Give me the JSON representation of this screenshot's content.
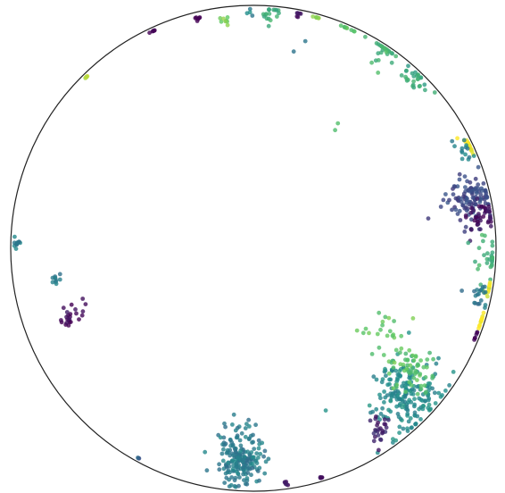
{
  "chart_data": {
    "type": "scatter",
    "title": "",
    "xlabel": "",
    "ylabel": "",
    "frame": "circle",
    "xlim": [
      -1,
      1
    ],
    "ylim": [
      -1,
      1
    ],
    "grid": false,
    "legend": "none",
    "colormap": "viridis",
    "colormap_stops": [
      "#440154",
      "#3b528b",
      "#21908c",
      "#5dc863",
      "#fde725"
    ],
    "clusters": [
      {
        "name": "top-left-purple",
        "x": -0.43,
        "y": 0.93,
        "c": 0.0,
        "n": 6,
        "spread": 0.008
      },
      {
        "name": "top-left-purple-2",
        "x": -0.23,
        "y": 0.95,
        "c": 0.0,
        "n": 6,
        "spread": 0.008
      },
      {
        "name": "top-yellowgreen",
        "x": -0.12,
        "y": 0.94,
        "c": 0.78,
        "n": 8,
        "spread": 0.012
      },
      {
        "name": "top-teal",
        "x": -0.01,
        "y": 0.97,
        "c": 0.45,
        "n": 4,
        "spread": 0.01
      },
      {
        "name": "top-green",
        "x": 0.07,
        "y": 0.975,
        "c": 0.62,
        "n": 18,
        "spread": 0.025
      },
      {
        "name": "top-purple",
        "x": 0.18,
        "y": 0.975,
        "c": 0.05,
        "n": 6,
        "spread": 0.01
      },
      {
        "name": "top-yellow",
        "x": 0.27,
        "y": 0.97,
        "c": 0.85,
        "n": 8,
        "spread": 0.012
      },
      {
        "name": "top-green-2",
        "x": 0.39,
        "y": 0.92,
        "c": 0.72,
        "n": 10,
        "spread": 0.015
      },
      {
        "name": "upper-right-arc",
        "x": 0.55,
        "y": 0.82,
        "c": 0.66,
        "n": 30,
        "spread": 0.04
      },
      {
        "name": "upper-right-arc-2",
        "x": 0.67,
        "y": 0.7,
        "c": 0.6,
        "n": 26,
        "spread": 0.035
      },
      {
        "name": "left-yellow",
        "x": -0.73,
        "y": 0.75,
        "c": 0.9,
        "n": 6,
        "spread": 0.008
      },
      {
        "name": "right-yellow",
        "x": 0.91,
        "y": 0.43,
        "c": 1.0,
        "n": 22,
        "spread": 0.02
      },
      {
        "name": "right-teal",
        "x": 0.87,
        "y": 0.4,
        "c": 0.45,
        "n": 14,
        "spread": 0.02
      },
      {
        "name": "right-dense-blue",
        "x": 0.89,
        "y": 0.2,
        "c": 0.22,
        "n": 120,
        "spread": 0.05
      },
      {
        "name": "right-dense-purple",
        "x": 0.93,
        "y": 0.13,
        "c": 0.05,
        "n": 40,
        "spread": 0.035
      },
      {
        "name": "right-mid-mixed",
        "x": 0.96,
        "y": -0.03,
        "c": 0.65,
        "n": 30,
        "spread": 0.04
      },
      {
        "name": "right-mid-yellow",
        "x": 0.98,
        "y": -0.17,
        "c": 0.95,
        "n": 12,
        "spread": 0.015
      },
      {
        "name": "right-mid-teal",
        "x": 0.93,
        "y": -0.2,
        "c": 0.4,
        "n": 20,
        "spread": 0.025
      },
      {
        "name": "right-low-yellow",
        "x": 0.97,
        "y": -0.31,
        "c": 1.0,
        "n": 12,
        "spread": 0.015
      },
      {
        "name": "right-low-purple",
        "x": 0.95,
        "y": -0.37,
        "c": 0.05,
        "n": 6,
        "spread": 0.01
      },
      {
        "name": "lower-right-large",
        "x": 0.62,
        "y": -0.6,
        "c": 0.48,
        "n": 200,
        "spread": 0.08
      },
      {
        "name": "lower-right-green",
        "x": 0.65,
        "y": -0.5,
        "c": 0.72,
        "n": 60,
        "spread": 0.05
      },
      {
        "name": "lower-right-sparse",
        "x": 0.53,
        "y": -0.35,
        "c": 0.75,
        "n": 22,
        "spread": 0.06
      },
      {
        "name": "lower-right-purple",
        "x": 0.52,
        "y": -0.75,
        "c": 0.1,
        "n": 25,
        "spread": 0.025
      },
      {
        "name": "bottom-teal",
        "x": -0.05,
        "y": -0.88,
        "c": 0.42,
        "n": 170,
        "spread": 0.045
      },
      {
        "name": "bottom-teal-sparse",
        "x": -0.05,
        "y": -0.78,
        "c": 0.42,
        "n": 30,
        "spread": 0.05
      },
      {
        "name": "bottom-purple",
        "x": 0.13,
        "y": -0.97,
        "c": 0.05,
        "n": 6,
        "spread": 0.008
      },
      {
        "name": "bottom-purple-2",
        "x": 0.28,
        "y": -0.95,
        "c": 0.05,
        "n": 6,
        "spread": 0.008
      },
      {
        "name": "bottom-left-blue",
        "x": -0.49,
        "y": -0.9,
        "c": 0.3,
        "n": 3,
        "spread": 0.005
      },
      {
        "name": "left-teal",
        "x": -0.98,
        "y": 0.02,
        "c": 0.42,
        "n": 12,
        "spread": 0.01
      },
      {
        "name": "left-teal-2",
        "x": -0.81,
        "y": -0.13,
        "c": 0.42,
        "n": 10,
        "spread": 0.012
      },
      {
        "name": "left-purple",
        "x": -0.76,
        "y": -0.29,
        "c": 0.03,
        "n": 18,
        "spread": 0.02
      },
      {
        "name": "left-purple-2",
        "x": -0.71,
        "y": -0.23,
        "c": 0.05,
        "n": 6,
        "spread": 0.03
      },
      {
        "name": "interior-green",
        "x": 0.33,
        "y": 0.51,
        "c": 0.7,
        "n": 2,
        "spread": 0.02
      },
      {
        "name": "interior-teal",
        "x": 0.22,
        "y": 0.8,
        "c": 0.35,
        "n": 2,
        "spread": 0.03
      }
    ]
  }
}
